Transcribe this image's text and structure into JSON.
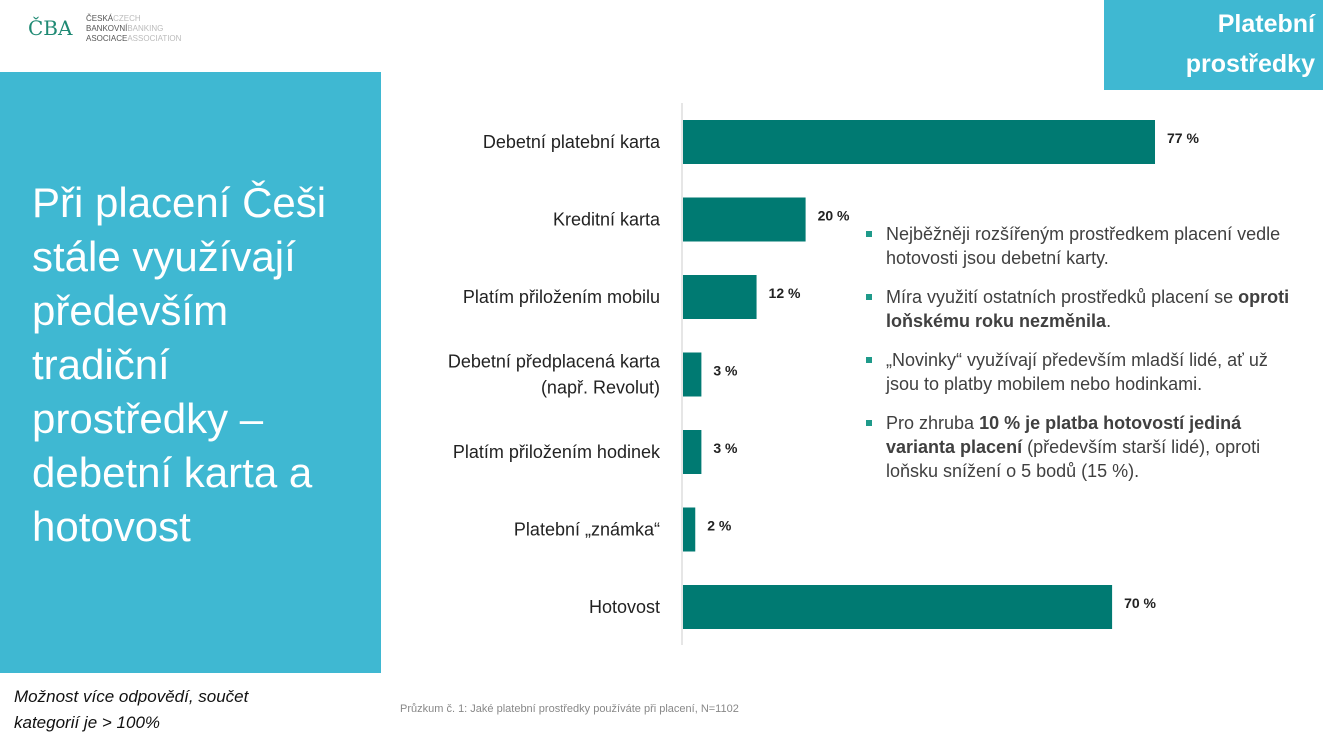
{
  "logo": {
    "mark": "ČBA",
    "lines": [
      [
        "ČESKÁ",
        "CZECH"
      ],
      [
        "BANKOVNÍ",
        "BANKING"
      ],
      [
        "ASOCIACE",
        "ASSOCIATION"
      ]
    ]
  },
  "tag": {
    "line1": "Platební",
    "line2": "prostředky"
  },
  "panel": {
    "title": "Při placení Češi stále využívají především tradiční prostředky – debetní karta a hotovost"
  },
  "note": {
    "line1": "Možnost více odpovědí, součet",
    "line2": "kategorií je > 100%"
  },
  "source": "Průzkum č. 1: Jaké platební prostředky používáte při placení, N=1102",
  "colors": {
    "bar": "#007a72",
    "panel": "#3fb8d2"
  },
  "chart_data": {
    "type": "bar",
    "orientation": "horizontal",
    "categories": [
      [
        "Debetní platební karta"
      ],
      [
        "Kreditní karta"
      ],
      [
        "Platím přiložením mobilu"
      ],
      [
        "Debetní předplacená karta",
        "(např. Revolut)"
      ],
      [
        "Platím přiložením hodinek"
      ],
      [
        "Platební „známka“"
      ],
      [
        "Hotovost"
      ]
    ],
    "values": [
      77,
      20,
      12,
      3,
      3,
      2,
      70
    ],
    "labels": [
      "77 %",
      "20 %",
      "12 %",
      "3 %",
      "3 %",
      "2 %",
      "70 %"
    ],
    "xlim": [
      0,
      100
    ],
    "grid": false
  },
  "bullets": [
    [
      {
        "t": "Nejběžněji rozšířeným prostředkem placení vedle hotovosti jsou debetní karty."
      }
    ],
    [
      {
        "t": "Míra využití ostatních prostředků placení se "
      },
      {
        "t": "oproti loňskému roku nezměnila",
        "b": true
      },
      {
        "t": "."
      }
    ],
    [
      {
        "t": "„Novinky“ využívají především mladší lidé, ať už jsou to platby mobilem nebo hodinkami."
      }
    ],
    [
      {
        "t": "Pro zhruba "
      },
      {
        "t": "10 % je platba hotovostí jediná varianta placení",
        "b": true
      },
      {
        "t": " (především starší lidé), oproti loňsku snížení o 5 bodů (15 %)."
      }
    ]
  ]
}
